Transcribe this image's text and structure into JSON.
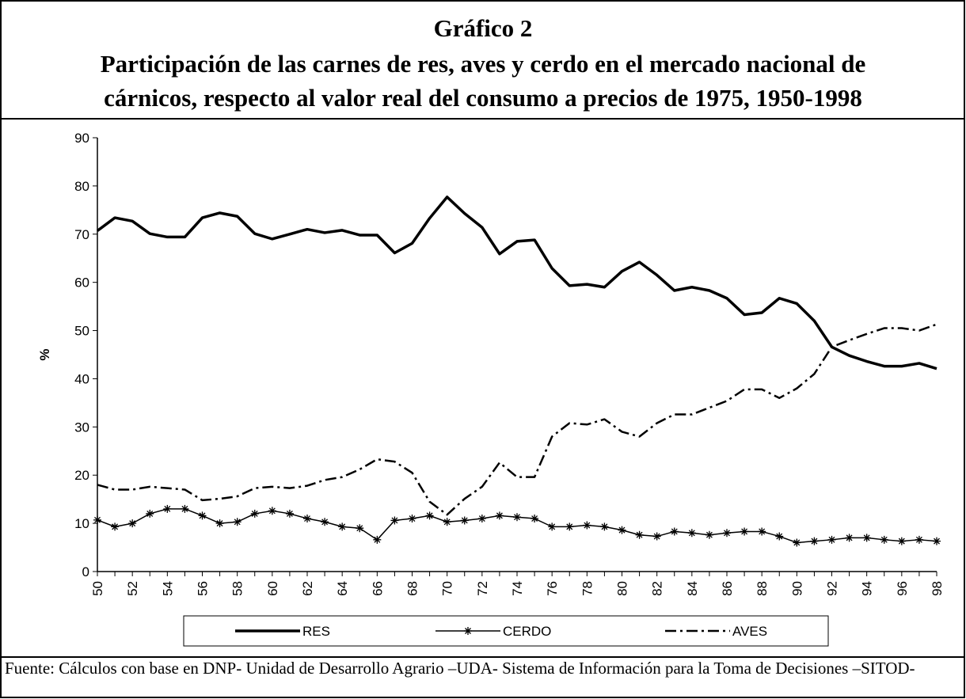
{
  "chart_data": {
    "type": "line",
    "title": "Gráfico 2",
    "subtitle": [
      "Participación de las carnes de res, aves y cerdo en el mercado nacional de",
      "cárnicos, respecto al valor real del consumo a precios de 1975, 1950-1998"
    ],
    "y_label": "%",
    "source": "Fuente: Cálculos con base en DNP- Unidad de Desarrollo Agrario –UDA- Sistema de Información para la Toma de Decisiones –SITOD-",
    "categories": [
      "50",
      null,
      "52",
      null,
      "54",
      null,
      "56",
      null,
      "58",
      null,
      "60",
      null,
      "62",
      null,
      "64",
      null,
      "66",
      null,
      "68",
      null,
      "70",
      null,
      "72",
      null,
      "74",
      null,
      "76",
      null,
      "78",
      null,
      "80",
      null,
      "82",
      null,
      "84",
      null,
      "86",
      null,
      "88",
      null,
      "90",
      null,
      "92",
      null,
      "94",
      null,
      "96",
      null,
      "98"
    ],
    "ylim": [
      0,
      90
    ],
    "yticks": [
      0,
      10,
      20,
      30,
      40,
      50,
      60,
      70,
      80,
      90
    ],
    "grid": false,
    "legend": "bottom",
    "series": [
      {
        "name": "RES",
        "color": "#000000",
        "line_style": "solid",
        "line_width": 3.5,
        "marker": "none",
        "values": [
          70.7,
          73.4,
          72.7,
          70.1,
          69.4,
          69.4,
          73.4,
          74.4,
          73.7,
          70.1,
          69.0,
          70.0,
          71.0,
          70.3,
          70.8,
          69.8,
          69.8,
          66.1,
          68.1,
          73.3,
          77.7,
          74.3,
          71.4,
          65.9,
          68.5,
          68.8,
          62.9,
          59.3,
          59.6,
          59.0,
          62.3,
          64.2,
          61.5,
          58.3,
          59.0,
          58.3,
          56.7,
          53.3,
          53.7,
          56.7,
          55.6,
          52.0,
          46.6,
          44.8,
          43.6,
          42.6,
          42.6,
          43.2,
          42.1
        ]
      },
      {
        "name": "CERDO",
        "color": "#000000",
        "line_style": "solid",
        "line_width": 1.5,
        "marker": "asterisk",
        "values": [
          10.7,
          9.3,
          10.0,
          12.0,
          13.0,
          13.0,
          11.6,
          10.0,
          10.3,
          12.0,
          12.6,
          12.0,
          11.0,
          10.3,
          9.3,
          9.0,
          6.6,
          10.6,
          11.0,
          11.6,
          10.3,
          10.6,
          11.0,
          11.6,
          11.3,
          11.0,
          9.3,
          9.3,
          9.6,
          9.3,
          8.6,
          7.6,
          7.3,
          8.3,
          8.0,
          7.6,
          8.0,
          8.3,
          8.3,
          7.3,
          6.0,
          6.3,
          6.6,
          7.0,
          7.0,
          6.6,
          6.3,
          6.6,
          6.3
        ]
      },
      {
        "name": "AVES",
        "color": "#000000",
        "line_style": "dashdot",
        "line_width": 2.5,
        "marker": "none",
        "values": [
          18.0,
          17.0,
          17.0,
          17.6,
          17.3,
          17.0,
          14.8,
          15.1,
          15.6,
          17.3,
          17.6,
          17.3,
          17.8,
          19.0,
          19.6,
          21.2,
          23.3,
          22.8,
          20.5,
          14.5,
          11.8,
          15.1,
          17.6,
          22.6,
          19.6,
          19.6,
          28.0,
          30.8,
          30.5,
          31.6,
          29.0,
          28.0,
          30.8,
          32.6,
          32.6,
          34.0,
          35.4,
          37.8,
          37.8,
          36.0,
          38.0,
          41.0,
          46.6,
          48.0,
          49.3,
          50.5,
          50.5,
          50.0,
          51.3
        ]
      }
    ]
  }
}
